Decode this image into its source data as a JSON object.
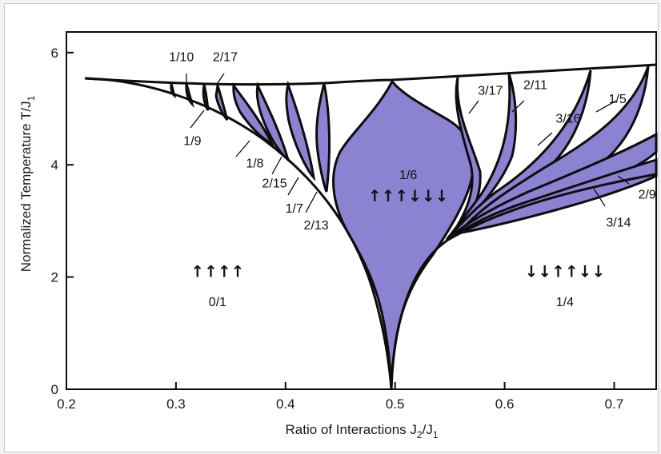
{
  "chart_data": {
    "type": "area",
    "title": "",
    "xlabel": "Ratio of Interactions J",
    "xlabel_sub": "2",
    "xlabel_mid": "/J",
    "xlabel_sub2": "1",
    "ylabel": "Normalized Temperature T/J",
    "ylabel_sub": "1",
    "xlim": [
      0.2,
      0.74
    ],
    "ylim": [
      0,
      6.3
    ],
    "xticks": [
      0.2,
      0.3,
      0.4,
      0.5,
      0.6,
      0.7
    ],
    "xtick_labels": [
      "0.2",
      "0.3",
      "0.4",
      "0.5",
      "0.6",
      "0.7"
    ],
    "yticks": [
      0,
      2,
      4,
      6
    ],
    "ytick_labels": [
      "0",
      "2",
      "4",
      "6"
    ],
    "grid": false,
    "fill_color": "#8c82d2",
    "line_color": "#0d0d0d",
    "phase_boundary": {
      "x": [
        0.22,
        0.27,
        0.32,
        0.36,
        0.4,
        0.43,
        0.46,
        0.48,
        0.495,
        0.5
      ],
      "y": [
        5.55,
        5.3,
        4.9,
        4.4,
        3.8,
        3.3,
        2.5,
        1.6,
        0.7,
        0.0
      ]
    },
    "upper_boundary": {
      "x": [
        0.22,
        0.3,
        0.4,
        0.5,
        0.6,
        0.7,
        0.74
      ],
      "y": [
        5.55,
        5.45,
        5.43,
        5.55,
        5.65,
        5.75,
        5.8
      ]
    },
    "annotations": [
      {
        "text": "1/10",
        "x": 0.305,
        "y": 5.85
      },
      {
        "text": "2/17",
        "x": 0.345,
        "y": 5.85
      },
      {
        "text": "1/9",
        "x": 0.315,
        "y": 4.35
      },
      {
        "text": "1/8",
        "x": 0.372,
        "y": 3.95
      },
      {
        "text": "2/15",
        "x": 0.39,
        "y": 3.6
      },
      {
        "text": "1/7",
        "x": 0.408,
        "y": 3.15
      },
      {
        "text": "2/13",
        "x": 0.428,
        "y": 2.85
      },
      {
        "text": "1/6",
        "x": 0.512,
        "y": 3.75
      },
      {
        "text": "3/17",
        "x": 0.587,
        "y": 5.25
      },
      {
        "text": "2/11",
        "x": 0.628,
        "y": 5.35
      },
      {
        "text": "3/16",
        "x": 0.658,
        "y": 4.75
      },
      {
        "text": "1/5",
        "x": 0.703,
        "y": 5.1
      },
      {
        "text": "2/9",
        "x": 0.73,
        "y": 3.4
      },
      {
        "text": "3/14",
        "x": 0.704,
        "y": 2.9
      },
      {
        "text": "0/1",
        "x": 0.338,
        "y": 1.48
      },
      {
        "text": "1/4",
        "x": 0.655,
        "y": 1.48
      }
    ],
    "spin_labels": [
      {
        "text": "↑↑↑↑",
        "x": 0.338,
        "y": 2.0
      },
      {
        "text": "↑↑↑↓↓↓",
        "x": 0.512,
        "y": 3.35
      },
      {
        "text": "↓↓↑↑↓↓",
        "x": 0.655,
        "y": 2.0
      }
    ]
  }
}
